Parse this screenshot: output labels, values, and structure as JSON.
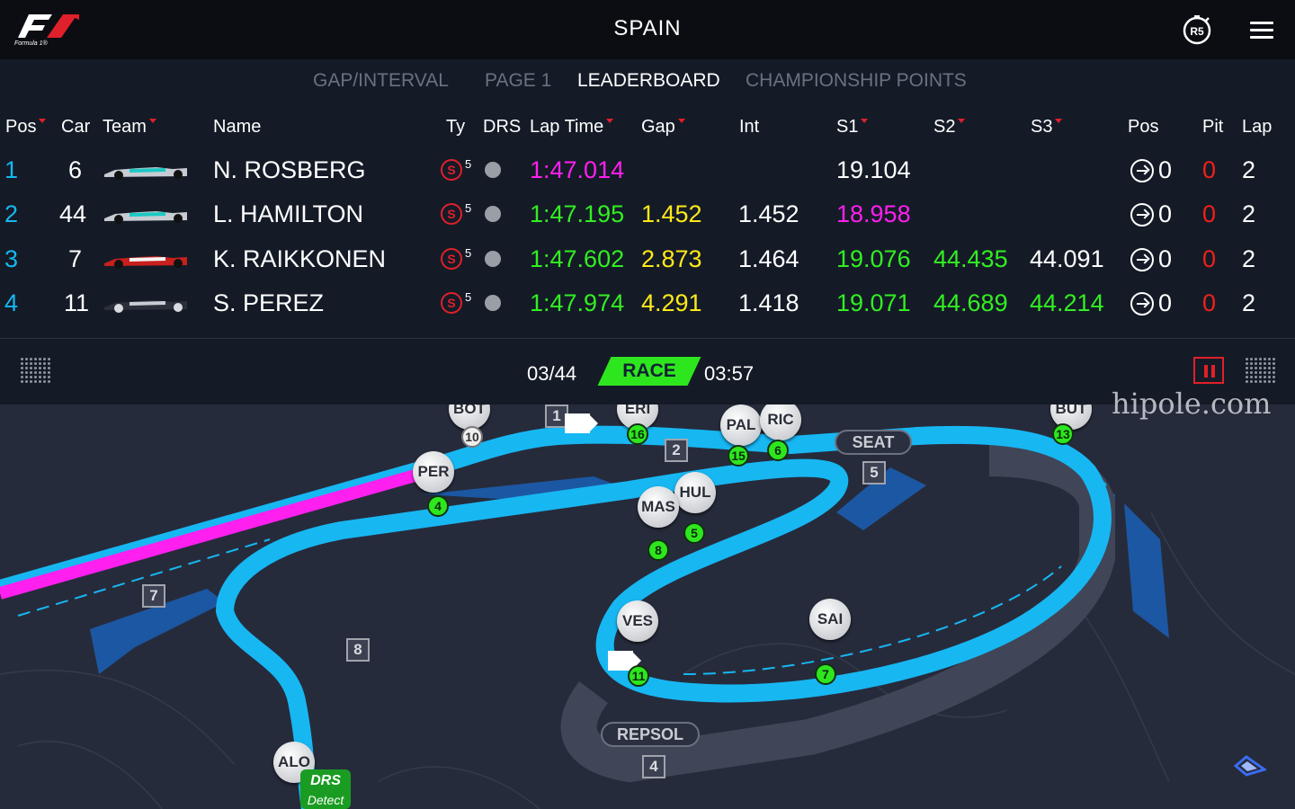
{
  "header": {
    "title": "SPAIN",
    "badge": "R5"
  },
  "tabs": [
    {
      "label": "GAP/INTERVAL"
    },
    {
      "label": "PAGE 1"
    },
    {
      "label": "LEADERBOARD"
    },
    {
      "label": "CHAMPIONSHIP POINTS"
    }
  ],
  "columns": {
    "pos": "Pos",
    "car": "Car",
    "team": "Team",
    "name": "Name",
    "ty": "Ty",
    "drs": "DRS",
    "lap_time": "Lap Time",
    "gap": "Gap",
    "int": "Int",
    "s1": "S1",
    "s2": "S2",
    "s3": "S3",
    "pos2": "Pos",
    "pit": "Pit",
    "lap": "Lap"
  },
  "rows": [
    {
      "pos": "1",
      "car": "6",
      "name": "N. ROSBERG",
      "tyre": "S",
      "tyre_laps": "5",
      "lap_time": "1:47.014",
      "gap": "",
      "int": "",
      "s1": "19.104",
      "s2": "",
      "s3": "",
      "pos_change": "0",
      "pit": "0",
      "lap": "2"
    },
    {
      "pos": "2",
      "car": "44",
      "name": "L. HAMILTON",
      "tyre": "S",
      "tyre_laps": "5",
      "lap_time": "1:47.195",
      "gap": "1.452",
      "int": "1.452",
      "s1": "18.958",
      "s2": "",
      "s3": "",
      "pos_change": "0",
      "pit": "0",
      "lap": "2"
    },
    {
      "pos": "3",
      "car": "7",
      "name": "K. RAIKKONEN",
      "tyre": "S",
      "tyre_laps": "5",
      "lap_time": "1:47.602",
      "gap": "2.873",
      "int": "1.464",
      "s1": "19.076",
      "s2": "44.435",
      "s3": "44.091",
      "pos_change": "0",
      "pit": "0",
      "lap": "2"
    },
    {
      "pos": "4",
      "car": "11",
      "name": "S. PEREZ",
      "tyre": "S",
      "tyre_laps": "5",
      "lap_time": "1:47.974",
      "gap": "4.291",
      "int": "1.418",
      "s1": "19.071",
      "s2": "44.689",
      "s3": "44.214",
      "pos_change": "0",
      "pit": "0",
      "lap": "2"
    }
  ],
  "status": {
    "lap": "03/44",
    "session": "RACE",
    "clock": "03:57"
  },
  "map": {
    "drivers": [
      {
        "code": "BOT",
        "number": "10"
      },
      {
        "code": "ERI",
        "number": "16"
      },
      {
        "code": "PAL",
        "number": "15"
      },
      {
        "code": "RIC",
        "number": "6"
      },
      {
        "code": "PER",
        "number": "4"
      },
      {
        "code": "HUL",
        "number": "5"
      },
      {
        "code": "MAS",
        "number": "8"
      },
      {
        "code": "VES",
        "number": "11"
      },
      {
        "code": "SAI",
        "number": "7"
      },
      {
        "code": "BUT",
        "number": "13"
      },
      {
        "code": "ALO",
        "number": ""
      }
    ],
    "turns": [
      "1",
      "2",
      "5",
      "7",
      "8",
      "4"
    ],
    "sponsors": [
      "SEAT",
      "REPSOL"
    ],
    "drs_label": "DRS",
    "drs_sub": "Detect"
  },
  "watermark": "hipole.com",
  "colors": {
    "fastest": "#ff1fef",
    "personal_best": "#33ee22",
    "gap": "#ffe81a",
    "accent_red": "#e0202a",
    "track": "#17b7f2"
  }
}
